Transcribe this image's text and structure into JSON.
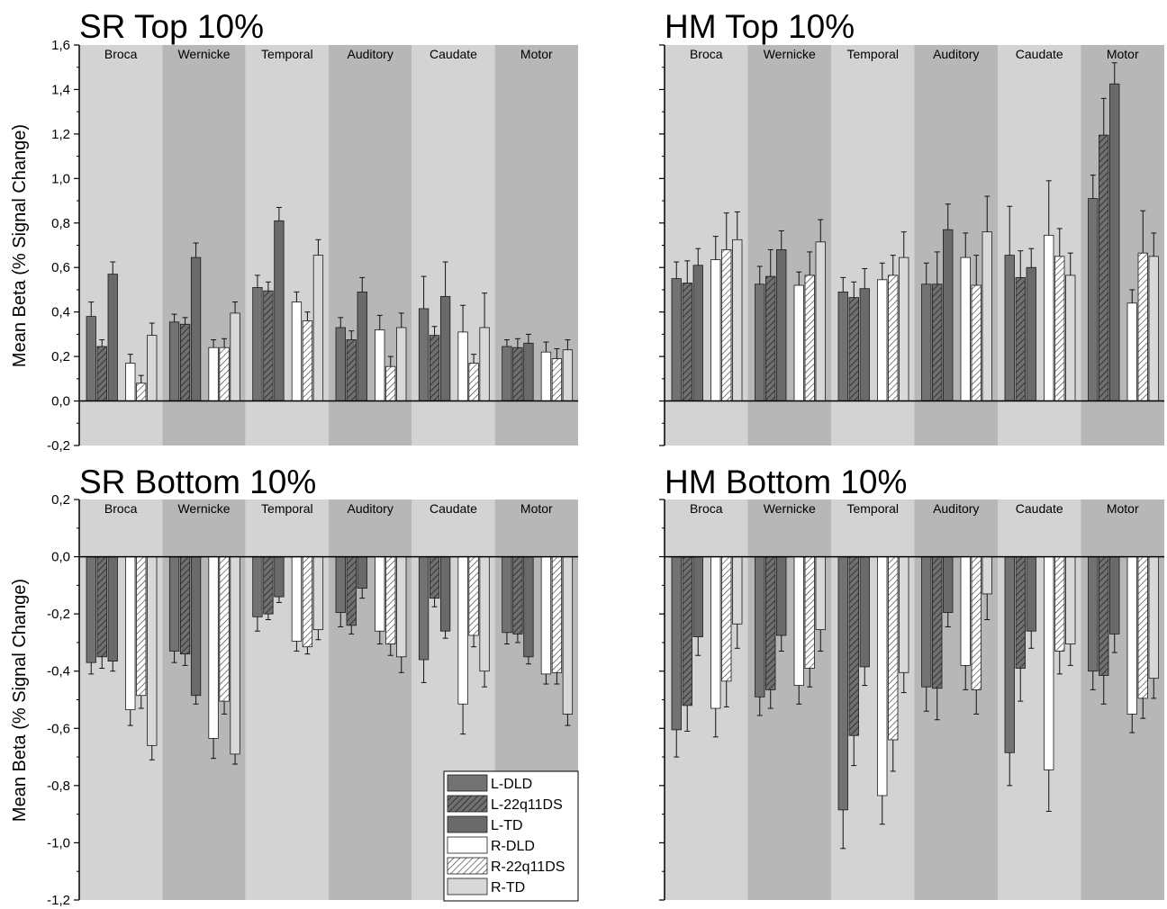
{
  "figure": {
    "ylabel": "Mean Beta (% Signal Change)",
    "regions": [
      "Broca",
      "Wernicke",
      "Temporal",
      "Auditory",
      "Caudate",
      "Motor"
    ],
    "legend": {
      "entries": [
        "L-DLD",
        "L-22q11DS",
        "L-TD",
        "R-DLD",
        "R-22q11DS",
        "R-TD"
      ],
      "placement": "bottom-right of SR Bottom 10% panel"
    },
    "colors": {
      "L-DLD": "#727272",
      "L-22q11DS": "#707070",
      "L-TD": "#6a6a6a",
      "R-DLD": "#ffffff",
      "R-22q11DS": "#ffffff",
      "R-TD": "#d8d8d8",
      "band_light": "#d3d3d3",
      "band_dark": "#b7b7b7"
    }
  },
  "chart_data": [
    {
      "type": "bar",
      "title": "SR Top 10%",
      "ylabel": "Mean Beta (% Signal Change)",
      "ylim": [
        -0.2,
        1.6
      ],
      "yticks": [
        "-0,2",
        "0,0",
        "0,2",
        "0,4",
        "0,6",
        "0,8",
        "1,0",
        "1,2",
        "1,4",
        "1,6"
      ],
      "categories": [
        "Broca",
        "Wernicke",
        "Temporal",
        "Auditory",
        "Caudate",
        "Motor"
      ],
      "series": [
        {
          "name": "L-DLD",
          "values": [
            0.38,
            0.355,
            0.51,
            0.33,
            0.415,
            0.245
          ],
          "errors": [
            0.065,
            0.035,
            0.055,
            0.045,
            0.145,
            0.03
          ]
        },
        {
          "name": "L-22q11DS",
          "values": [
            0.245,
            0.345,
            0.495,
            0.275,
            0.295,
            0.24
          ],
          "errors": [
            0.03,
            0.03,
            0.04,
            0.04,
            0.04,
            0.04
          ]
        },
        {
          "name": "L-TD",
          "values": [
            0.57,
            0.645,
            0.81,
            0.49,
            0.47,
            0.26
          ],
          "errors": [
            0.055,
            0.065,
            0.06,
            0.065,
            0.155,
            0.04
          ]
        },
        {
          "name": "R-DLD",
          "values": [
            0.17,
            0.24,
            0.445,
            0.32,
            0.31,
            0.22
          ],
          "errors": [
            0.04,
            0.035,
            0.045,
            0.065,
            0.12,
            0.045
          ]
        },
        {
          "name": "R-22q11DS",
          "values": [
            0.08,
            0.24,
            0.36,
            0.155,
            0.17,
            0.19
          ],
          "errors": [
            0.035,
            0.04,
            0.04,
            0.045,
            0.04,
            0.045
          ]
        },
        {
          "name": "R-TD",
          "values": [
            0.295,
            0.395,
            0.655,
            0.33,
            0.33,
            0.23
          ],
          "errors": [
            0.055,
            0.05,
            0.07,
            0.065,
            0.155,
            0.045
          ]
        }
      ]
    },
    {
      "type": "bar",
      "title": "HM Top 10%",
      "ylim": [
        -0.2,
        1.6
      ],
      "categories": [
        "Broca",
        "Wernicke",
        "Temporal",
        "Auditory",
        "Caudate",
        "Motor"
      ],
      "series": [
        {
          "name": "L-DLD",
          "values": [
            0.55,
            0.525,
            0.49,
            0.525,
            0.655,
            0.91
          ],
          "errors": [
            0.075,
            0.08,
            0.065,
            0.095,
            0.22,
            0.105
          ]
        },
        {
          "name": "L-22q11DS",
          "values": [
            0.53,
            0.56,
            0.465,
            0.525,
            0.555,
            1.195
          ],
          "errors": [
            0.1,
            0.12,
            0.07,
            0.145,
            0.12,
            0.165
          ]
        },
        {
          "name": "L-TD",
          "values": [
            0.61,
            0.68,
            0.505,
            0.77,
            0.6,
            1.425
          ],
          "errors": [
            0.075,
            0.085,
            0.09,
            0.115,
            0.085,
            0.095
          ]
        },
        {
          "name": "R-DLD",
          "values": [
            0.635,
            0.52,
            0.545,
            0.645,
            0.745,
            0.44
          ],
          "errors": [
            0.105,
            0.06,
            0.075,
            0.11,
            0.245,
            0.06
          ]
        },
        {
          "name": "R-22q11DS",
          "values": [
            0.68,
            0.565,
            0.565,
            0.52,
            0.65,
            0.665
          ],
          "errors": [
            0.165,
            0.105,
            0.09,
            0.135,
            0.125,
            0.19
          ]
        },
        {
          "name": "R-TD",
          "values": [
            0.725,
            0.715,
            0.645,
            0.76,
            0.565,
            0.65
          ],
          "errors": [
            0.125,
            0.1,
            0.115,
            0.16,
            0.1,
            0.105
          ]
        }
      ]
    },
    {
      "type": "bar",
      "title": "SR Bottom 10%",
      "ylabel": "Mean Beta (% Signal Change)",
      "ylim": [
        -1.2,
        0.2
      ],
      "yticks": [
        "-1,2",
        "-1,0",
        "-0,8",
        "-0,6",
        "-0,4",
        "-0,2",
        "0,0",
        "0,2"
      ],
      "categories": [
        "Broca",
        "Wernicke",
        "Temporal",
        "Auditory",
        "Caudate",
        "Motor"
      ],
      "series": [
        {
          "name": "L-DLD",
          "values": [
            -0.37,
            -0.33,
            -0.21,
            -0.195,
            -0.36,
            -0.265
          ],
          "errors": [
            0.04,
            0.04,
            0.05,
            0.05,
            0.08,
            0.04
          ]
        },
        {
          "name": "L-22q11DS",
          "values": [
            -0.35,
            -0.34,
            -0.2,
            -0.24,
            -0.145,
            -0.27
          ],
          "errors": [
            0.04,
            0.04,
            0.02,
            0.03,
            0.03,
            0.03
          ]
        },
        {
          "name": "L-TD",
          "values": [
            -0.365,
            -0.485,
            -0.14,
            -0.11,
            -0.26,
            -0.35
          ],
          "errors": [
            0.035,
            0.03,
            0.02,
            0.035,
            0.025,
            0.025
          ]
        },
        {
          "name": "R-DLD",
          "values": [
            -0.535,
            -0.635,
            -0.295,
            -0.26,
            -0.515,
            -0.41
          ],
          "errors": [
            0.055,
            0.07,
            0.035,
            0.045,
            0.105,
            0.035
          ]
        },
        {
          "name": "R-22q11DS",
          "values": [
            -0.485,
            -0.505,
            -0.315,
            -0.305,
            -0.275,
            -0.405
          ],
          "errors": [
            0.045,
            0.045,
            0.025,
            0.04,
            0.04,
            0.04
          ]
        },
        {
          "name": "R-TD",
          "values": [
            -0.66,
            -0.69,
            -0.255,
            -0.35,
            -0.4,
            -0.55
          ],
          "errors": [
            0.05,
            0.035,
            0.035,
            0.055,
            0.055,
            0.04
          ]
        }
      ]
    },
    {
      "type": "bar",
      "title": "HM Bottom 10%",
      "ylim": [
        -1.2,
        0.2
      ],
      "categories": [
        "Broca",
        "Wernicke",
        "Temporal",
        "Auditory",
        "Caudate",
        "Motor"
      ],
      "series": [
        {
          "name": "L-DLD",
          "values": [
            -0.605,
            -0.49,
            -0.885,
            -0.455,
            -0.685,
            -0.4
          ],
          "errors": [
            0.095,
            0.065,
            0.135,
            0.085,
            0.115,
            0.065
          ]
        },
        {
          "name": "L-22q11DS",
          "values": [
            -0.52,
            -0.465,
            -0.625,
            -0.46,
            -0.39,
            -0.415
          ],
          "errors": [
            0.09,
            0.065,
            0.105,
            0.11,
            0.115,
            0.1
          ]
        },
        {
          "name": "L-TD",
          "values": [
            -0.28,
            -0.275,
            -0.385,
            -0.195,
            -0.26,
            -0.27
          ],
          "errors": [
            0.065,
            0.055,
            0.065,
            0.05,
            0.06,
            0.065
          ]
        },
        {
          "name": "R-DLD",
          "values": [
            -0.53,
            -0.45,
            -0.835,
            -0.38,
            -0.745,
            -0.55
          ],
          "errors": [
            0.1,
            0.065,
            0.1,
            0.085,
            0.145,
            0.065
          ]
        },
        {
          "name": "R-22q11DS",
          "values": [
            -0.435,
            -0.39,
            -0.64,
            -0.465,
            -0.33,
            -0.495
          ],
          "errors": [
            0.09,
            0.065,
            0.11,
            0.085,
            0.08,
            0.07
          ]
        },
        {
          "name": "R-TD",
          "values": [
            -0.235,
            -0.255,
            -0.405,
            -0.13,
            -0.305,
            -0.425
          ],
          "errors": [
            0.085,
            0.075,
            0.07,
            0.09,
            0.075,
            0.07
          ]
        }
      ]
    }
  ]
}
